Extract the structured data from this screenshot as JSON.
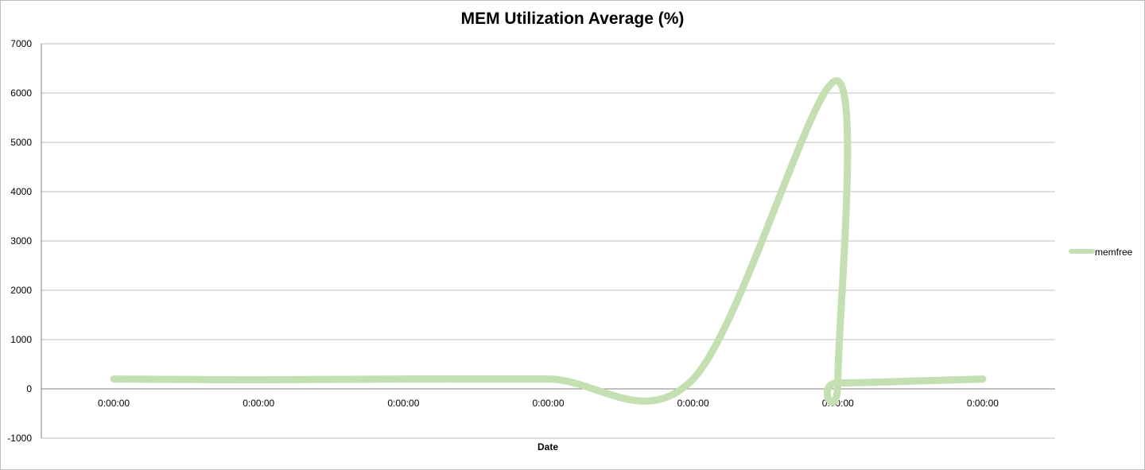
{
  "chart_data": {
    "type": "line",
    "title": "MEM Utilization Average (%)",
    "xlabel": "Date",
    "ylabel": "",
    "ylim": [
      -1000,
      7000
    ],
    "yticks": [
      -1000,
      0,
      1000,
      2000,
      3000,
      4000,
      5000,
      6000,
      7000
    ],
    "categories": [
      "0:00:00",
      "0:00:00",
      "0:00:00",
      "0:00:00",
      "0:00:00",
      "0:00:00",
      "0:00:00"
    ],
    "grid": true,
    "legend_position": "right",
    "series": [
      {
        "name": "memfree",
        "color": "#c4dfb1",
        "smooth": true,
        "values": [
          200,
          185,
          200,
          200,
          200,
          200,
          200
        ],
        "extra_points": [
          {
            "between": [
              4,
              5
            ],
            "x_frac": 0.99,
            "value": 6250
          },
          {
            "between": [
              4,
              5
            ],
            "x_frac": 1.0,
            "value": 120
          }
        ]
      }
    ]
  }
}
